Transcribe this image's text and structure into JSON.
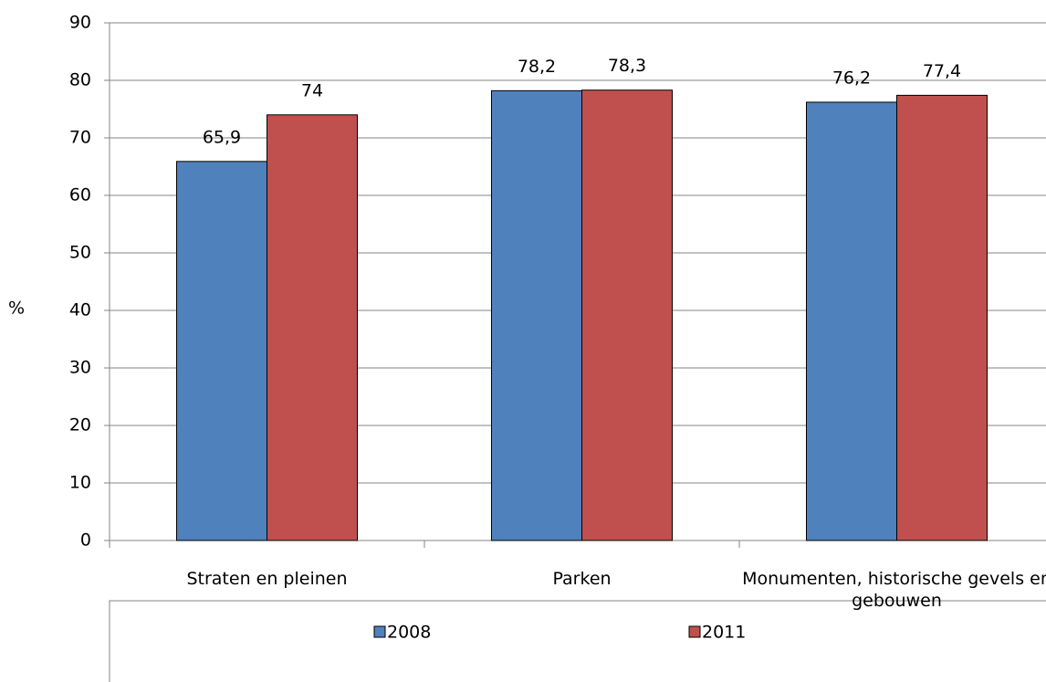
{
  "chart_data": {
    "type": "bar",
    "y_label": "%",
    "categories": [
      "Straten en pleinen",
      "Parken",
      "Monumenten, historische gevels en gebouwen"
    ],
    "series": [
      {
        "name": "2008",
        "color": "#4f81bd",
        "values": [
          65.9,
          78.2,
          76.2
        ],
        "value_labels": [
          "65,9",
          "78,2",
          "76,2"
        ]
      },
      {
        "name": "2011",
        "color": "#c0504d",
        "values": [
          74,
          78.3,
          77.4
        ],
        "value_labels": [
          "74",
          "78,3",
          "77,4"
        ]
      }
    ],
    "ylim": [
      0,
      90
    ],
    "yticks": [
      0,
      10,
      20,
      30,
      40,
      50,
      60,
      70,
      80,
      90
    ],
    "grid": true,
    "legend": "bottom"
  }
}
